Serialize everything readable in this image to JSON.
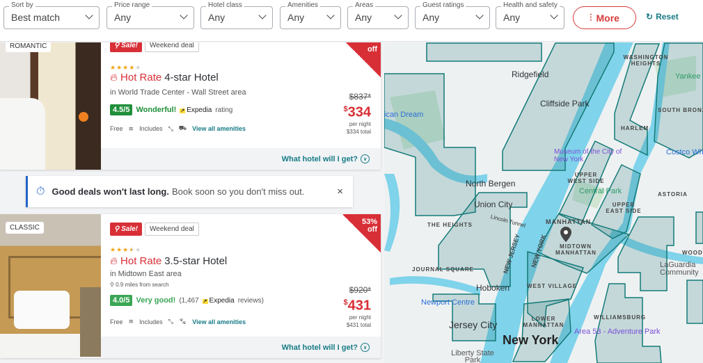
{
  "filters": [
    {
      "label": "Sort by",
      "value": "Best match"
    },
    {
      "label": "Price range",
      "value": "Any"
    },
    {
      "label": "Hotel class",
      "value": "Any"
    },
    {
      "label": "Amenities",
      "value": "Any"
    },
    {
      "label": "Areas",
      "value": "Any"
    },
    {
      "label": "Guest ratings",
      "value": "Any"
    },
    {
      "label": "Health and safety",
      "value": "Any"
    }
  ],
  "more_label": "More",
  "reset_label": "Reset",
  "accent": "#d82f36",
  "teal": "#177b86",
  "hotels": [
    {
      "tag": "ROMANTIC",
      "sale": "Sale!",
      "deal": "Weekend deal",
      "stars": 4,
      "hot_rate": "Hot Rate",
      "title": "4-star Hotel",
      "area": "in World Trade Center - Wall Street area",
      "score": "4.5/5",
      "rating_word": "Wonderful!",
      "provider": "Expedia",
      "rating_suffix": "rating",
      "free": "Free",
      "includes": "Includes",
      "amenities_link": "View all amenities",
      "old_price": "$837*",
      "price": "334",
      "currency": "$",
      "per_night": "per night",
      "total": "$334 total",
      "discount_off": "off",
      "what_hotel": "What hotel will I get?"
    },
    {
      "tag": "CLASSIC",
      "sale": "Sale!",
      "deal": "Weekend deal",
      "stars": 3.5,
      "hot_rate": "Hot Rate",
      "title": "3.5-star Hotel",
      "area": "in Midtown East area",
      "distance": "0.9 miles from search",
      "score": "4.0/5",
      "rating_word": "Very good!",
      "reviews_prefix": "(1,467",
      "provider": "Expedia",
      "rating_suffix": "reviews)",
      "free": "Free",
      "includes": "Includes",
      "amenities_link": "View all amenities",
      "old_price": "$920*",
      "price": "431",
      "currency": "$",
      "per_night": "per night",
      "total": "$431 total",
      "discount_pct": "53%",
      "discount_off": "off",
      "what_hotel": "What hotel will I get?"
    }
  ],
  "banner": {
    "bold": "Good deals won't last long.",
    "text": "Book soon so you don't miss out.",
    "close": "×"
  },
  "map": {
    "labels": [
      "Ridgefield",
      "Cliffside Park",
      "North Bergen",
      "Union City",
      "Hoboken",
      "Jersey City",
      "New York",
      "WASHINGTON HEIGHTS",
      "HARLEM",
      "SOUTH BRONX",
      "UPPER WEST SIDE",
      "Central Park",
      "UPPER EAST SIDE",
      "MANHATTAN",
      "MIDTOWN MANHATTAN",
      "WEST VILLAGE",
      "LOWER MANHATTAN",
      "ASTORIA",
      "WILLIAMSBURG",
      "THE HEIGHTS",
      "JOURNAL SQUARE",
      "NEW JERSEY",
      "NEW YORK",
      "Museum of the City of New York",
      "Newport Centre",
      "Area 53 - Adventure Park",
      "Yankee S",
      "Costco Wh",
      "LaGuardia Community",
      "Liberty State Park",
      "ican Dream",
      "Lincoln Tunnel",
      "WOODS"
    ]
  }
}
